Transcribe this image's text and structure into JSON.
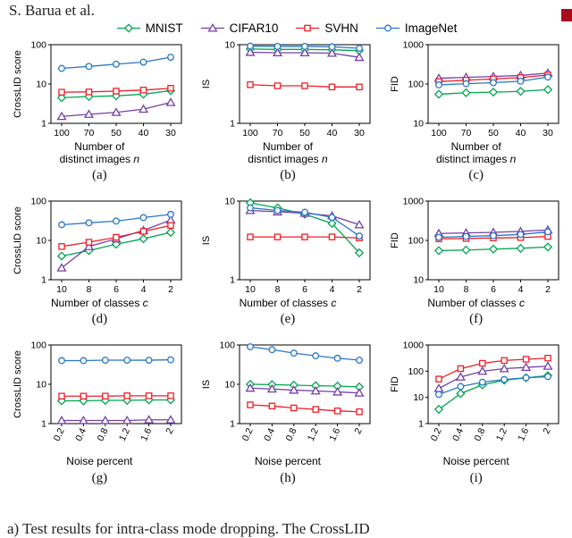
{
  "page": {
    "header": "S. Barua et al.",
    "caption_visible": "a) Test results for intra-class mode dropping. The CrossLID",
    "marker_color": "#a80d1d"
  },
  "legend": [
    {
      "name": "MNIST",
      "color": "#00a550",
      "marker": "diamond"
    },
    {
      "name": "CIFAR10",
      "color": "#7440a8",
      "marker": "triangle"
    },
    {
      "name": "SVHN",
      "color": "#ec2027",
      "marker": "square"
    },
    {
      "name": "ImageNet",
      "color": "#2878c8",
      "marker": "circle"
    }
  ],
  "chart_data": [
    {
      "id": "a",
      "type": "line",
      "caption": "(a)",
      "ylabel": "CrossLID score",
      "xlabel_lines": [
        "Number of",
        "distinct images n"
      ],
      "categories": [
        "100",
        "70",
        "50",
        "40",
        "30"
      ],
      "ylim": [
        1,
        100
      ],
      "yticks": [
        1,
        10,
        100
      ],
      "rotate_xticks": false,
      "series": [
        {
          "name": "MNIST",
          "values": [
            4.5,
            4.8,
            5.0,
            5.5,
            6.8
          ]
        },
        {
          "name": "CIFAR10",
          "values": [
            1.5,
            1.7,
            1.9,
            2.3,
            3.4
          ]
        },
        {
          "name": "SVHN",
          "values": [
            6.2,
            6.3,
            6.6,
            7.0,
            7.8
          ]
        },
        {
          "name": "ImageNet",
          "values": [
            25,
            28,
            32,
            36,
            48
          ]
        }
      ]
    },
    {
      "id": "b",
      "type": "line",
      "caption": "(b)",
      "ylabel": "IS",
      "xlabel_lines": [
        "Number of",
        "disntict images n"
      ],
      "categories": [
        "100",
        "70",
        "50",
        "40",
        "30"
      ],
      "ylim": [
        1,
        10
      ],
      "yticks": [
        1,
        10
      ],
      "rotate_xticks": false,
      "series": [
        {
          "name": "MNIST",
          "values": [
            8.8,
            8.7,
            8.7,
            8.6,
            8.4
          ]
        },
        {
          "name": "CIFAR10",
          "values": [
            8.0,
            7.9,
            7.9,
            7.8,
            6.9
          ]
        },
        {
          "name": "SVHN",
          "values": [
            3.1,
            3.0,
            3.0,
            2.9,
            2.9
          ]
        },
        {
          "name": "ImageNet",
          "values": [
            9.6,
            9.5,
            9.5,
            9.4,
            9.0
          ]
        }
      ]
    },
    {
      "id": "c",
      "type": "line",
      "caption": "(c)",
      "ylabel": "FID",
      "xlabel_lines": [
        "Number of",
        "distinct images n"
      ],
      "categories": [
        "100",
        "70",
        "50",
        "40",
        "30"
      ],
      "ylim": [
        10,
        1000
      ],
      "yticks": [
        10,
        100,
        1000
      ],
      "rotate_xticks": false,
      "series": [
        {
          "name": "MNIST",
          "values": [
            55,
            60,
            62,
            65,
            72
          ]
        },
        {
          "name": "CIFAR10",
          "values": [
            140,
            148,
            155,
            165,
            190
          ]
        },
        {
          "name": "SVHN",
          "values": [
            115,
            125,
            135,
            145,
            170
          ]
        },
        {
          "name": "ImageNet",
          "values": [
            95,
            102,
            108,
            118,
            150
          ]
        }
      ]
    },
    {
      "id": "d",
      "type": "line",
      "caption": "(d)",
      "ylabel": "CrossLID score",
      "xlabel_lines": [
        "Number of classes c"
      ],
      "categories": [
        "10",
        "8",
        "6",
        "4",
        "2"
      ],
      "ylim": [
        1,
        100
      ],
      "yticks": [
        1,
        10,
        100
      ],
      "rotate_xticks": false,
      "series": [
        {
          "name": "MNIST",
          "values": [
            4,
            5.5,
            8,
            11,
            16
          ]
        },
        {
          "name": "CIFAR10",
          "values": [
            2,
            7,
            11,
            18,
            33
          ]
        },
        {
          "name": "SVHN",
          "values": [
            7,
            9,
            12,
            17,
            24
          ]
        },
        {
          "name": "ImageNet",
          "values": [
            25,
            28,
            31,
            38,
            46
          ]
        }
      ]
    },
    {
      "id": "e",
      "type": "line",
      "caption": "(e)",
      "ylabel": "IS",
      "xlabel_lines": [
        "Number of classes c"
      ],
      "categories": [
        "10",
        "8",
        "6",
        "4",
        "2"
      ],
      "ylim": [
        1,
        10
      ],
      "yticks": [
        1,
        10
      ],
      "rotate_xticks": false,
      "series": [
        {
          "name": "MNIST",
          "values": [
            9.5,
            8.2,
            6.8,
            5.2,
            2.2
          ]
        },
        {
          "name": "CIFAR10",
          "values": [
            7.6,
            7.3,
            7.0,
            6.5,
            5.0
          ]
        },
        {
          "name": "SVHN",
          "values": [
            3.5,
            3.5,
            3.5,
            3.5,
            3.4
          ]
        },
        {
          "name": "ImageNet",
          "values": [
            8.2,
            7.6,
            7.2,
            6.2,
            3.6
          ]
        }
      ]
    },
    {
      "id": "f",
      "type": "line",
      "caption": "(f)",
      "ylabel": "FID",
      "xlabel_lines": [
        "Number of classes c"
      ],
      "categories": [
        "10",
        "8",
        "6",
        "4",
        "2"
      ],
      "ylim": [
        10,
        1000
      ],
      "yticks": [
        10,
        100,
        1000
      ],
      "rotate_xticks": false,
      "series": [
        {
          "name": "MNIST",
          "values": [
            55,
            57,
            60,
            63,
            68
          ]
        },
        {
          "name": "CIFAR10",
          "values": [
            150,
            155,
            160,
            170,
            185
          ]
        },
        {
          "name": "SVHN",
          "values": [
            110,
            112,
            115,
            118,
            126
          ]
        },
        {
          "name": "ImageNet",
          "values": [
            120,
            126,
            132,
            142,
            165
          ]
        }
      ]
    },
    {
      "id": "g",
      "type": "line",
      "caption": "(g)",
      "ylabel": "CrossLID score",
      "xlabel_lines": [
        "Noise percent"
      ],
      "categories": [
        "0.2",
        "0.4",
        "0.8",
        "1.2",
        "1.6",
        "2"
      ],
      "ylim": [
        1,
        100
      ],
      "yticks": [
        1,
        10,
        100
      ],
      "rotate_xticks": true,
      "series": [
        {
          "name": "MNIST",
          "values": [
            3.8,
            3.8,
            3.9,
            3.9,
            4.0,
            4.0
          ]
        },
        {
          "name": "CIFAR10",
          "values": [
            1.2,
            1.2,
            1.2,
            1.2,
            1.25,
            1.25
          ]
        },
        {
          "name": "SVHN",
          "values": [
            5.0,
            5.0,
            5.0,
            5.1,
            5.1,
            5.1
          ]
        },
        {
          "name": "ImageNet",
          "values": [
            40,
            40,
            41,
            41,
            41,
            42
          ]
        }
      ]
    },
    {
      "id": "h",
      "type": "line",
      "caption": "(h)",
      "ylabel": "IS",
      "xlabel_lines": [
        "Noise percent"
      ],
      "categories": [
        "0.2",
        "0.4",
        "0.8",
        "1.2",
        "1.6",
        "2"
      ],
      "ylim": [
        1,
        100
      ],
      "yticks": [
        1,
        10,
        100
      ],
      "rotate_xticks": true,
      "series": [
        {
          "name": "MNIST",
          "values": [
            10,
            9.8,
            9.5,
            9.2,
            9.0,
            8.6
          ]
        },
        {
          "name": "CIFAR10",
          "values": [
            8.0,
            7.6,
            7.1,
            6.8,
            6.4,
            6.0
          ]
        },
        {
          "name": "SVHN",
          "values": [
            3.0,
            2.8,
            2.5,
            2.3,
            2.1,
            2.0
          ]
        },
        {
          "name": "ImageNet",
          "values": [
            90,
            76,
            62,
            53,
            46,
            41
          ]
        }
      ]
    },
    {
      "id": "i",
      "type": "line",
      "caption": "(i)",
      "ylabel": "FID",
      "xlabel_lines": [
        "Noise percent"
      ],
      "categories": [
        "0.2",
        "0.4",
        "0.8",
        "1.2",
        "1.6",
        "2"
      ],
      "ylim": [
        1,
        1000
      ],
      "yticks": [
        1,
        10,
        100,
        1000
      ],
      "rotate_xticks": true,
      "series": [
        {
          "name": "MNIST",
          "values": [
            3.5,
            14,
            30,
            45,
            56,
            68
          ]
        },
        {
          "name": "CIFAR10",
          "values": [
            22,
            60,
            100,
            125,
            140,
            155
          ]
        },
        {
          "name": "SVHN",
          "values": [
            50,
            125,
            200,
            255,
            285,
            315
          ]
        },
        {
          "name": "ImageNet",
          "values": [
            13,
            26,
            38,
            48,
            56,
            62
          ]
        }
      ]
    }
  ]
}
